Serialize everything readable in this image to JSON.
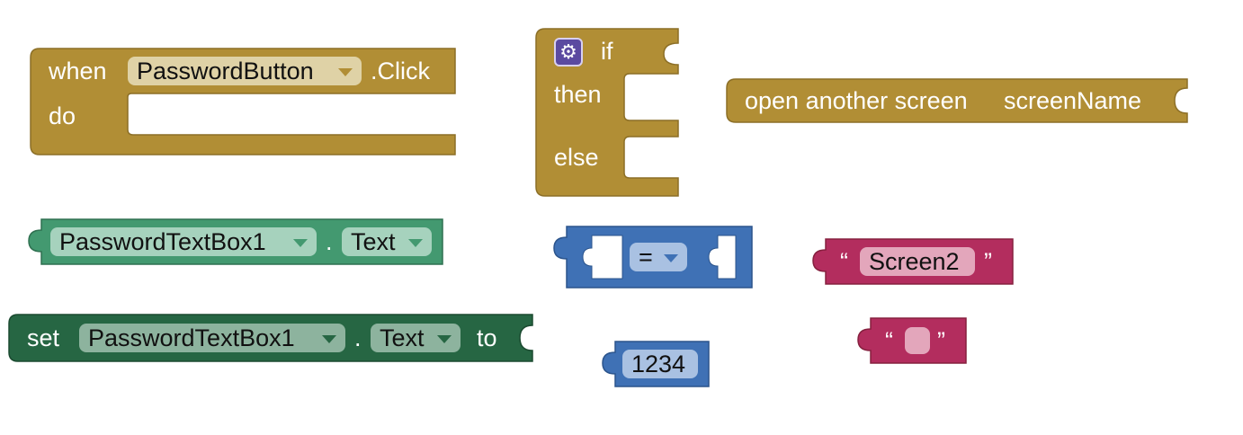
{
  "colors": {
    "control": "#b18e35",
    "component_getter": "#439970",
    "component_setter": "#266643",
    "math": "#3f71b5",
    "text": "#b32d5e"
  },
  "event_block": {
    "when_label": "when",
    "component": "PasswordButton",
    "event": ".Click",
    "do_label": "do"
  },
  "if_block": {
    "gear_icon": "gear-icon",
    "if_label": "if",
    "then_label": "then",
    "else_label": "else"
  },
  "open_screen_block": {
    "label": "open another screen",
    "param_label": "screenName"
  },
  "getter_block": {
    "component": "PasswordTextBox1",
    "dot": ".",
    "property": "Text"
  },
  "setter_block": {
    "set_label": "set",
    "component": "PasswordTextBox1",
    "dot": ".",
    "property": "Text",
    "to_label": "to"
  },
  "compare_block": {
    "operator": "="
  },
  "number_block": {
    "value": "1234"
  },
  "text_screen2_block": {
    "open_quote": "“",
    "value": "Screen2",
    "close_quote": "”"
  },
  "text_empty_block": {
    "open_quote": "“",
    "value": "",
    "close_quote": "”"
  }
}
